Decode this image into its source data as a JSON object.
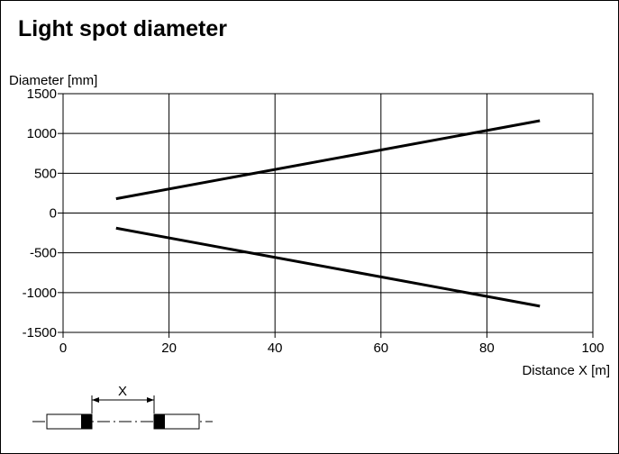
{
  "title": "Light spot diameter",
  "chart_data": {
    "type": "line",
    "title": "Light spot diameter",
    "xlabel": "Distance X [m]",
    "ylabel": "Diameter [mm]",
    "xlim": [
      0,
      100
    ],
    "ylim": [
      -1500,
      1500
    ],
    "x_ticks": [
      0,
      20,
      40,
      60,
      80,
      100
    ],
    "y_ticks": [
      1500,
      1000,
      500,
      0,
      -500,
      -1000,
      -1500
    ],
    "grid": true,
    "series_color": "#000000",
    "series": [
      {
        "x": [
          10,
          90
        ],
        "y": [
          180,
          1160
        ]
      },
      {
        "x": [
          10,
          90
        ],
        "y": [
          -190,
          -1170
        ]
      }
    ]
  },
  "diagram": {
    "distance_label": "X"
  }
}
